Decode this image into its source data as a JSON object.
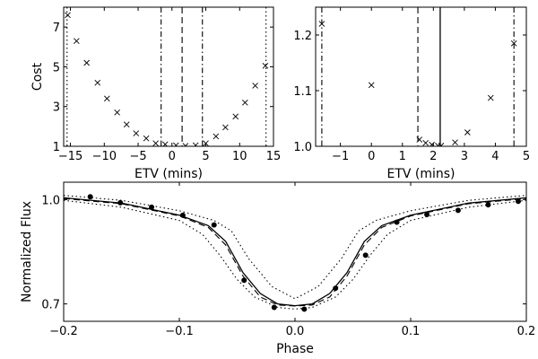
{
  "chart_data": [
    {
      "id": "cost",
      "type": "scatter",
      "xlabel": "ETV (mins)",
      "ylabel": "Cost",
      "xlim": [
        -16,
        15
      ],
      "ylim": [
        1,
        8
      ],
      "xticks": [
        -15,
        -10,
        -5,
        0,
        5,
        10,
        15
      ],
      "xtick_labels": [
        "−15",
        "−10",
        "−5",
        "0",
        "5",
        "10",
        "15"
      ],
      "yticks": [
        1,
        3,
        5,
        7
      ],
      "ytick_labels": [
        "1",
        "3",
        "5",
        "7"
      ],
      "marker": "x",
      "x": [
        -15.4,
        -14.1,
        -12.6,
        -11.0,
        -9.6,
        -8.1,
        -6.7,
        -5.3,
        -3.8,
        -2.4,
        -1.0,
        0.6,
        2.0,
        3.5,
        5.0,
        6.5,
        7.9,
        9.4,
        10.8,
        12.3,
        13.8
      ],
      "y": [
        7.6,
        6.3,
        5.2,
        4.2,
        3.4,
        2.7,
        2.1,
        1.65,
        1.4,
        1.15,
        1.1,
        1.05,
        1.02,
        1.05,
        1.15,
        1.5,
        1.95,
        2.5,
        3.2,
        4.05,
        5.05
      ],
      "vlines": [
        {
          "x": -15.5,
          "style": "dotted"
        },
        {
          "x": -1.6,
          "style": "dashdot"
        },
        {
          "x": 1.5,
          "style": "dashed"
        },
        {
          "x": 4.5,
          "style": "dashdot"
        },
        {
          "x": 13.9,
          "style": "dotted"
        }
      ]
    },
    {
      "id": "cost-zoom",
      "type": "scatter",
      "xlabel": "ETV (mins)",
      "ylabel": "",
      "xlim": [
        -1.8,
        5
      ],
      "ylim": [
        1.0,
        1.25
      ],
      "xticks": [
        -1,
        0,
        1,
        2,
        3,
        4,
        5
      ],
      "xtick_labels": [
        "−1",
        "0",
        "1",
        "2",
        "3",
        "4",
        "5"
      ],
      "yticks": [
        1.0,
        1.1,
        1.2
      ],
      "ytick_labels": [
        "1.0",
        "1.1",
        "1.2"
      ],
      "marker": "x",
      "x": [
        -1.6,
        0.0,
        1.55,
        1.75,
        1.95,
        2.15,
        2.25,
        2.7,
        3.1,
        3.85,
        4.6
      ],
      "y": [
        1.22,
        1.11,
        1.012,
        1.006,
        1.003,
        1.001,
        1.001,
        1.007,
        1.025,
        1.087,
        1.185
      ],
      "vlines": [
        {
          "x": -1.6,
          "style": "dashdot"
        },
        {
          "x": 1.5,
          "style": "dashed"
        },
        {
          "x": 2.22,
          "style": "solid"
        },
        {
          "x": 4.6,
          "style": "dashdot"
        }
      ]
    },
    {
      "id": "phase",
      "type": "line",
      "xlabel": "Phase",
      "ylabel": "Normalized Flux",
      "xlim": [
        -0.2,
        0.2
      ],
      "ylim": [
        0.65,
        1.05
      ],
      "xticks": [
        -0.2,
        -0.1,
        0.0,
        0.1,
        0.2
      ],
      "xtick_labels": [
        "−0.2",
        "−0.1",
        "0.0",
        "0.1",
        "0.2"
      ],
      "yticks": [
        0.7,
        1.0
      ],
      "ytick_labels": [
        "0.7",
        "1.0"
      ],
      "points": {
        "x": [
          -0.177,
          -0.151,
          -0.124,
          -0.097,
          -0.07,
          -0.044,
          -0.018,
          0.008,
          0.035,
          0.061,
          0.088,
          0.114,
          0.141,
          0.167,
          0.193
        ],
        "y": [
          1.008,
          0.991,
          0.978,
          0.955,
          0.927,
          0.768,
          0.69,
          0.685,
          0.745,
          0.84,
          0.935,
          0.957,
          0.969,
          0.985,
          0.995
        ]
      },
      "series": [
        {
          "name": "model",
          "style": "solid",
          "x": [
            -0.2,
            -0.15,
            -0.1,
            -0.075,
            -0.06,
            -0.045,
            -0.03,
            -0.015,
            0.0,
            0.015,
            0.03,
            0.045,
            0.06,
            0.075,
            0.1,
            0.15,
            0.2
          ],
          "y": [
            1.005,
            0.99,
            0.955,
            0.925,
            0.88,
            0.79,
            0.73,
            0.7,
            0.695,
            0.7,
            0.73,
            0.79,
            0.88,
            0.925,
            0.955,
            0.99,
            1.005
          ]
        },
        {
          "name": "model-dashed",
          "style": "dashed",
          "x": [
            -0.2,
            -0.15,
            -0.1,
            -0.075,
            -0.06,
            -0.045,
            -0.03,
            -0.015,
            0.0,
            0.015,
            0.03,
            0.045,
            0.06,
            0.075,
            0.1,
            0.15,
            0.2
          ],
          "y": [
            1.003,
            0.988,
            0.953,
            0.92,
            0.87,
            0.78,
            0.72,
            0.697,
            0.694,
            0.697,
            0.72,
            0.78,
            0.87,
            0.92,
            0.953,
            0.988,
            1.003
          ]
        },
        {
          "name": "upper-bound",
          "style": "dotted",
          "x": [
            -0.2,
            -0.15,
            -0.1,
            -0.07,
            -0.055,
            -0.04,
            -0.02,
            0.0,
            0.02,
            0.04,
            0.055,
            0.07,
            0.1,
            0.15,
            0.2
          ],
          "y": [
            1.012,
            0.998,
            0.968,
            0.94,
            0.91,
            0.83,
            0.75,
            0.715,
            0.75,
            0.83,
            0.91,
            0.94,
            0.968,
            0.998,
            1.012
          ]
        },
        {
          "name": "lower-bound",
          "style": "dotted",
          "x": [
            -0.2,
            -0.15,
            -0.1,
            -0.08,
            -0.065,
            -0.05,
            -0.035,
            -0.015,
            0.0,
            0.015,
            0.035,
            0.05,
            0.065,
            0.08,
            0.1,
            0.15,
            0.2
          ],
          "y": [
            0.998,
            0.978,
            0.94,
            0.9,
            0.84,
            0.77,
            0.72,
            0.69,
            0.685,
            0.69,
            0.72,
            0.77,
            0.84,
            0.9,
            0.94,
            0.978,
            0.998
          ]
        }
      ]
    }
  ]
}
